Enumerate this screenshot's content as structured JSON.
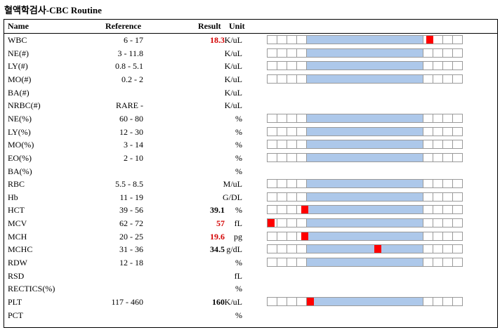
{
  "title": "혈액학검사-CBC Routine",
  "headers": {
    "name": "Name",
    "reference": "Reference",
    "result": "Result",
    "unit": "Unit"
  },
  "colors": {
    "normal_band": "#adc8ea",
    "marker": "#ff0000",
    "abnormal_text": "#d40000"
  },
  "rows": [
    {
      "name": "WBC",
      "reference": "6 - 17",
      "result": "18.3",
      "unit": "K/uL",
      "flag": "high",
      "bar": true,
      "marker": 0.85
    },
    {
      "name": "NE(#)",
      "reference": "3 - 11.8",
      "result": "",
      "unit": "K/uL",
      "flag": "",
      "bar": true,
      "marker": null
    },
    {
      "name": "LY(#)",
      "reference": "0.8 - 5.1",
      "result": "",
      "unit": "K/uL",
      "flag": "",
      "bar": true,
      "marker": null
    },
    {
      "name": "MO(#)",
      "reference": "0.2 - 2",
      "result": "",
      "unit": "K/uL",
      "flag": "",
      "bar": true,
      "marker": null
    },
    {
      "name": "BA(#)",
      "reference": "",
      "result": "",
      "unit": "K/uL",
      "flag": "",
      "bar": false,
      "marker": null
    },
    {
      "name": "NRBC(#)",
      "reference": "RARE -",
      "result": "",
      "unit": "K/uL",
      "flag": "",
      "bar": false,
      "marker": null
    },
    {
      "name": "NE(%)",
      "reference": "60 - 80",
      "result": "",
      "unit": "%",
      "flag": "",
      "bar": true,
      "marker": null
    },
    {
      "name": "LY(%)",
      "reference": "12 - 30",
      "result": "",
      "unit": "%",
      "flag": "",
      "bar": true,
      "marker": null
    },
    {
      "name": "MO(%)",
      "reference": "3 - 14",
      "result": "",
      "unit": "%",
      "flag": "",
      "bar": true,
      "marker": null
    },
    {
      "name": "EO(%)",
      "reference": "2 - 10",
      "result": "",
      "unit": "%",
      "flag": "",
      "bar": true,
      "marker": null
    },
    {
      "name": "BA(%)",
      "reference": "",
      "result": "",
      "unit": "%",
      "flag": "",
      "bar": false,
      "marker": null
    },
    {
      "name": "RBC",
      "reference": "5.5 - 8.5",
      "result": "",
      "unit": "M/uL",
      "flag": "",
      "bar": true,
      "marker": null
    },
    {
      "name": "Hb",
      "reference": "11 - 19",
      "result": "",
      "unit": "G/DL",
      "flag": "",
      "bar": true,
      "marker": null
    },
    {
      "name": "HCT",
      "reference": "39 - 56",
      "result": "39.1",
      "unit": "%",
      "flag": "",
      "bar": true,
      "marker": 0.18
    },
    {
      "name": "MCV",
      "reference": "62 - 72",
      "result": "57",
      "unit": "fL",
      "flag": "low",
      "bar": true,
      "marker": 0.0
    },
    {
      "name": "MCH",
      "reference": "20 - 25",
      "result": "19.6",
      "unit": "pg",
      "flag": "low",
      "bar": true,
      "marker": 0.18
    },
    {
      "name": "MCHC",
      "reference": "31 - 36",
      "result": "34.5",
      "unit": "g/dL",
      "flag": "",
      "bar": true,
      "marker": 0.57
    },
    {
      "name": "RDW",
      "reference": "12 - 18",
      "result": "",
      "unit": "%",
      "flag": "",
      "bar": true,
      "marker": null
    },
    {
      "name": "RSD",
      "reference": "",
      "result": "",
      "unit": "fL",
      "flag": "",
      "bar": false,
      "marker": null
    },
    {
      "name": "RECTICS(%)",
      "reference": "",
      "result": "",
      "unit": "%",
      "flag": "",
      "bar": false,
      "marker": null
    },
    {
      "name": "PLT",
      "reference": "117 - 460",
      "result": "160",
      "unit": "K/uL",
      "flag": "",
      "bar": true,
      "marker": 0.21
    },
    {
      "name": "PCT",
      "reference": "",
      "result": "",
      "unit": "%",
      "flag": "",
      "bar": false,
      "marker": null
    }
  ]
}
